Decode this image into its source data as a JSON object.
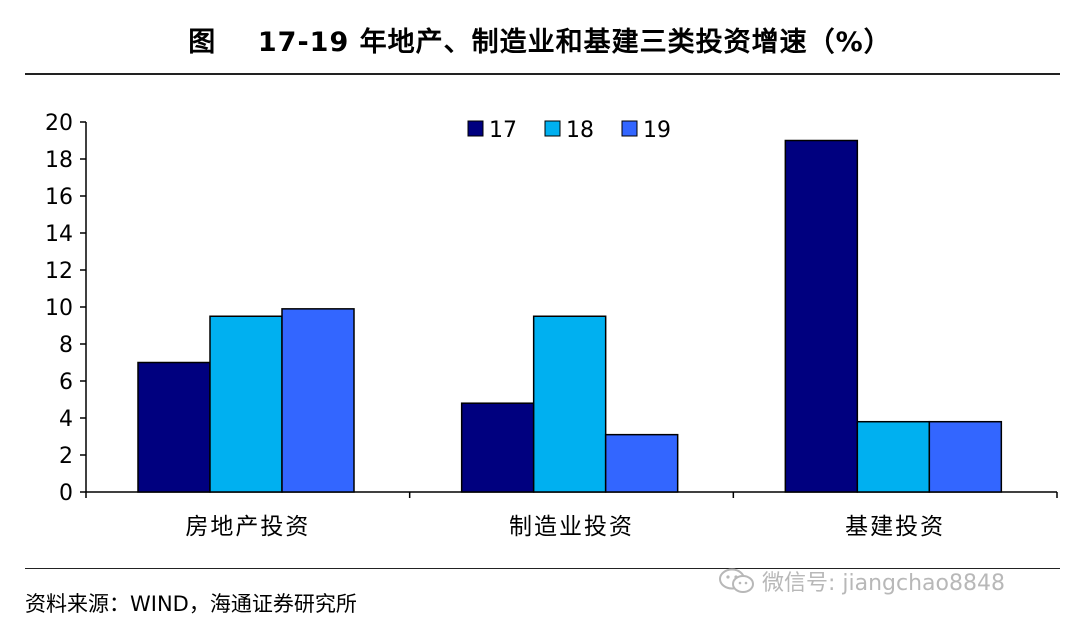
{
  "header": {
    "title": "图    17-19 年地产、制造业和基建三类投资增速（%）"
  },
  "footer": {
    "source": "资料来源：WIND，海通证券研究所",
    "watermark": "微信号: jiangchao8848",
    "watermark_icon": "wechat-icon"
  },
  "colors": {
    "series_17": "#00007F",
    "series_18": "#00B0F0",
    "series_19": "#3366FF",
    "bar_outline": "#000000"
  },
  "chart_data": {
    "type": "bar",
    "title": "17-19 年地产、制造业和基建三类投资增速（%）",
    "categories": [
      "房地产投资",
      "制造业投资",
      "基建投资"
    ],
    "series": [
      {
        "name": "17",
        "values": [
          7.0,
          4.8,
          19.0
        ]
      },
      {
        "name": "18",
        "values": [
          9.5,
          9.5,
          3.8
        ]
      },
      {
        "name": "19",
        "values": [
          9.9,
          3.1,
          3.8
        ]
      }
    ],
    "ylim": [
      0,
      20
    ],
    "yticks": [
      0,
      2,
      4,
      6,
      8,
      10,
      12,
      14,
      16,
      18,
      20
    ],
    "xlabel": "",
    "ylabel": "",
    "grid": false,
    "legend_position": "top-center"
  }
}
